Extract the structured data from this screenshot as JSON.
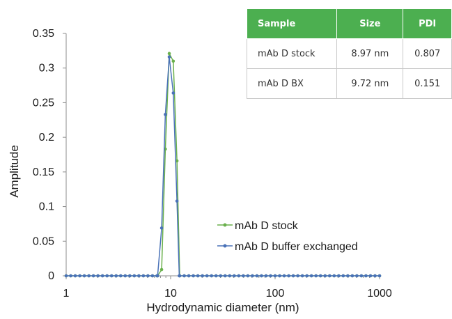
{
  "chart_data": {
    "type": "line",
    "xlabel": "Hydrodynamic diameter (nm)",
    "ylabel": "Amplitude",
    "x_scale": "log",
    "xlim": [
      1,
      1000
    ],
    "ylim": [
      0,
      0.35
    ],
    "x_ticks": [
      1,
      10,
      100,
      1000
    ],
    "x_tick_labels": [
      "1",
      "10",
      "100",
      "1000"
    ],
    "y_ticks": [
      0,
      0.05,
      0.1,
      0.15,
      0.2,
      0.25,
      0.3,
      0.35
    ],
    "y_tick_labels": [
      "0",
      "0.05",
      "0.1",
      "0.15",
      "0.2",
      "0.25",
      "0.3",
      "0.35"
    ],
    "grid": false,
    "legend_position": "lower-right",
    "series": [
      {
        "name": "mAb D stock",
        "color": "#6ab04c",
        "x": [
          7.5,
          8.2,
          8.9,
          9.7,
          10.6,
          11.5
        ],
        "y": [
          0.0,
          0.009,
          0.183,
          0.321,
          0.31,
          0.166
        ]
      },
      {
        "name": "mAb D buffer exchanged",
        "color": "#4a72b8",
        "x": [
          7.5,
          8.2,
          8.9,
          9.7,
          10.6,
          11.5,
          12.1
        ],
        "y": [
          0.0,
          0.069,
          0.233,
          0.316,
          0.264,
          0.108,
          0.0
        ]
      }
    ]
  },
  "table": {
    "headers": [
      "Sample",
      "Size",
      "PDI"
    ],
    "rows": [
      [
        "mAb D stock",
        "8.97 nm",
        "0.807"
      ],
      [
        "mAb D BX",
        "9.72 nm",
        "0.151"
      ]
    ],
    "header_color": "#4caf50"
  }
}
